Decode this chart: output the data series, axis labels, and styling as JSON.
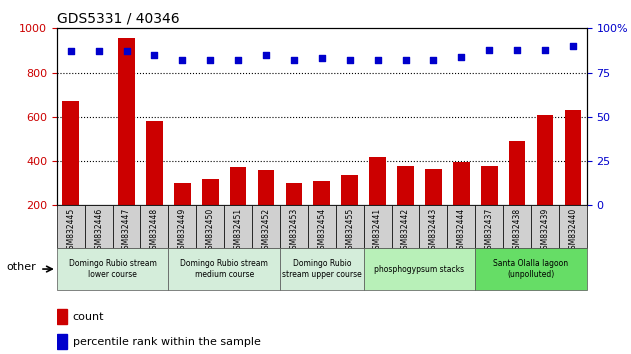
{
  "title": "GDS5331 / 40346",
  "samples": [
    "GSM832445",
    "GSM832446",
    "GSM832447",
    "GSM832448",
    "GSM832449",
    "GSM832450",
    "GSM832451",
    "GSM832452",
    "GSM832453",
    "GSM832454",
    "GSM832455",
    "GSM832441",
    "GSM832442",
    "GSM832443",
    "GSM832444",
    "GSM832437",
    "GSM832438",
    "GSM832439",
    "GSM832440"
  ],
  "counts": [
    672,
    200,
    955,
    580,
    300,
    320,
    372,
    360,
    302,
    310,
    336,
    418,
    378,
    364,
    398,
    378,
    492,
    607,
    632
  ],
  "percentiles": [
    87,
    87,
    87,
    85,
    82,
    82,
    82,
    85,
    82,
    83,
    82,
    82,
    82,
    82,
    84,
    88,
    88,
    88,
    90
  ],
  "groups": [
    {
      "label": "Domingo Rubio stream\nlower course",
      "start": 0,
      "end": 4,
      "color": "#d4edda"
    },
    {
      "label": "Domingo Rubio stream\nmedium course",
      "start": 4,
      "end": 8,
      "color": "#d4edda"
    },
    {
      "label": "Domingo Rubio\nstream upper course",
      "start": 8,
      "end": 11,
      "color": "#d4edda"
    },
    {
      "label": "phosphogypsum stacks",
      "start": 11,
      "end": 15,
      "color": "#b8f0b8"
    },
    {
      "label": "Santa Olalla lagoon\n(unpolluted)",
      "start": 15,
      "end": 19,
      "color": "#66dd66"
    }
  ],
  "bar_color": "#cc0000",
  "dot_color": "#0000cc",
  "ylim_left": [
    200,
    1000
  ],
  "ylim_right": [
    0,
    100
  ],
  "yticks_left": [
    200,
    400,
    600,
    800,
    1000
  ],
  "yticks_right": [
    0,
    25,
    50,
    75,
    100
  ],
  "grid_values": [
    400,
    600,
    800
  ],
  "bar_width": 0.6
}
